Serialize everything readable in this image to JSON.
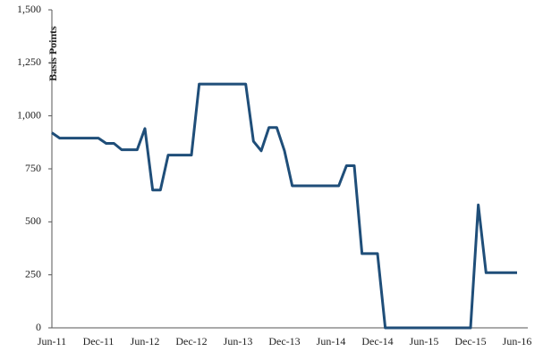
{
  "chart_data": {
    "type": "line",
    "y_label": "Basis Points",
    "categories": [
      "Jun-11",
      null,
      null,
      null,
      null,
      null,
      "Dec-11",
      null,
      null,
      null,
      null,
      null,
      "Jun-12",
      null,
      null,
      null,
      null,
      null,
      "Dec-12",
      null,
      null,
      null,
      null,
      null,
      "Jun-13",
      null,
      null,
      null,
      null,
      null,
      "Dec-13",
      null,
      null,
      null,
      null,
      null,
      "Jun-14",
      null,
      null,
      null,
      null,
      null,
      "Dec-14",
      null,
      null,
      null,
      null,
      null,
      "Jun-15",
      null,
      null,
      null,
      null,
      null,
      "Dec-15",
      null,
      null,
      null,
      null,
      null,
      "Jun-16"
    ],
    "series": [
      {
        "color": "#1f4e79",
        "values": [
          920,
          895,
          895,
          895,
          895,
          895,
          895,
          870,
          870,
          840,
          840,
          840,
          940,
          650,
          650,
          815,
          815,
          815,
          815,
          1150,
          1150,
          1150,
          1150,
          1150,
          1150,
          1150,
          880,
          835,
          945,
          945,
          835,
          670,
          670,
          670,
          670,
          670,
          670,
          670,
          765,
          765,
          350,
          350,
          350,
          0,
          0,
          0,
          0,
          0,
          0,
          0,
          0,
          0,
          0,
          0,
          0,
          580,
          260,
          260,
          260,
          260,
          260
        ]
      }
    ],
    "ylim": [
      0,
      1500
    ],
    "yticks": [
      0,
      250,
      500,
      750,
      {
        "value": 1000,
        "label": "1,000"
      },
      {
        "value": 1250,
        "label": "1,250"
      },
      {
        "value": 1500,
        "label": "1,500"
      }
    ],
    "grid": false
  }
}
